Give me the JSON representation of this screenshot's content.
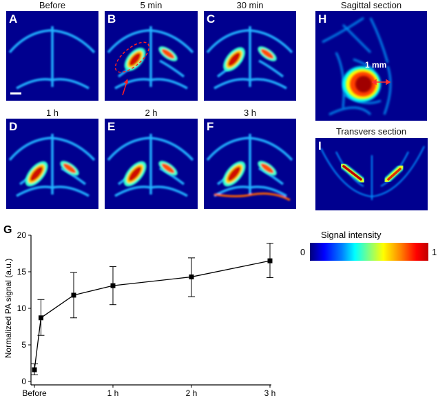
{
  "panels": [
    {
      "id": "A",
      "title": "Before"
    },
    {
      "id": "B",
      "title": "5 min"
    },
    {
      "id": "C",
      "title": "30 min"
    },
    {
      "id": "D",
      "title": "1 h"
    },
    {
      "id": "E",
      "title": "2 h"
    },
    {
      "id": "F",
      "title": "3 h"
    },
    {
      "id": "H",
      "title": "Sagittal section",
      "annotation": "1 mm"
    },
    {
      "id": "I",
      "title": "Transvers section"
    }
  ],
  "colorbar": {
    "title": "Signal intensity",
    "min_label": "0",
    "max_label": "1",
    "colormap": "jet"
  },
  "chart_data": {
    "type": "line",
    "panel_label": "G",
    "ylabel": "Normalized PA signal (a.u.)",
    "xlabel": "",
    "x_unit": "h",
    "x_ticks": [
      {
        "value": 0,
        "label": "Before"
      },
      {
        "value": 1,
        "label": "1 h"
      },
      {
        "value": 2,
        "label": "2 h"
      },
      {
        "value": 3,
        "label": "3 h"
      }
    ],
    "y_ticks": [
      0,
      5,
      10,
      15,
      20
    ],
    "ylim": [
      0,
      20
    ],
    "xlim": [
      0,
      3
    ],
    "grid": false,
    "marker": "square",
    "color": "#000000",
    "points": [
      {
        "x": 0,
        "y": 1.6,
        "err_low": 0.9,
        "err_high": 2.4
      },
      {
        "x": 0.083,
        "y": 8.7,
        "err_low": 6.3,
        "err_high": 11.2
      },
      {
        "x": 0.5,
        "y": 11.8,
        "err_low": 8.7,
        "err_high": 14.9
      },
      {
        "x": 1,
        "y": 13.1,
        "err_low": 10.5,
        "err_high": 15.7
      },
      {
        "x": 2,
        "y": 14.3,
        "err_low": 11.6,
        "err_high": 16.9
      },
      {
        "x": 3,
        "y": 16.5,
        "err_low": 14.2,
        "err_high": 18.9
      }
    ]
  }
}
